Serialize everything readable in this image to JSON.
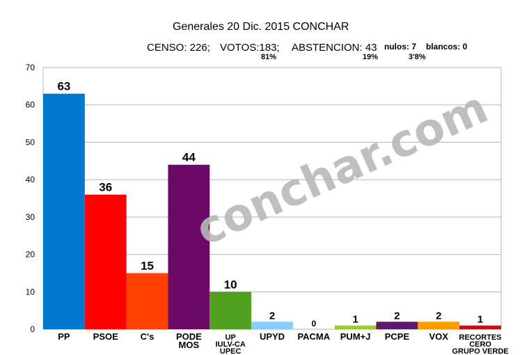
{
  "header": {
    "title": "Generales 20 Dic. 2015 CONCHAR",
    "censo": "CENSO: 226;",
    "votos": "VOTOS:183;",
    "votos_pct": "81%",
    "abstencion": "ABSTENCION: 43",
    "abstencion_pct": "19%",
    "nulos": "nulos: 7",
    "nulos_pct": "3'8%",
    "blancos": "blancos: 0"
  },
  "watermark": "conchar.com",
  "chart_data": {
    "type": "bar",
    "title": "Generales 20 Dic. 2015 CONCHAR",
    "ylim": [
      0,
      70
    ],
    "yticks": [
      0,
      10,
      20,
      30,
      40,
      50,
      60,
      70
    ],
    "grid": true,
    "legend": "none",
    "categories": [
      "PP",
      "PSOE",
      "C's",
      "PODE\nMOS",
      "UP\nIULV-CA\nUPEC",
      "UPYD",
      "PACMA",
      "PUM+J",
      "PCPE",
      "VOX",
      "RECORTES\nCERO\nGRUPO VERDE"
    ],
    "values": [
      63,
      36,
      15,
      44,
      10,
      2,
      0,
      1,
      2,
      2,
      1
    ],
    "colors": [
      "#0078d0",
      "#ff0000",
      "#ff4000",
      "#6a0a66",
      "#52a022",
      "#87cefa",
      "#888888",
      "#9acd32",
      "#5c1a6a",
      "#ff9d00",
      "#c0131e"
    ]
  }
}
